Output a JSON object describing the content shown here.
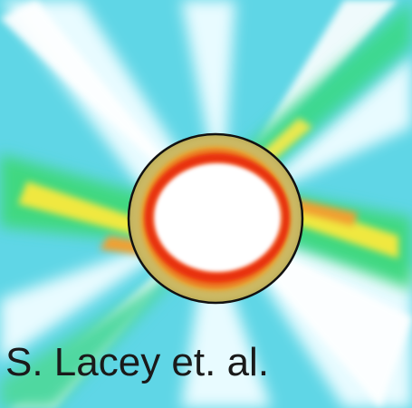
{
  "caption": "S. Lacey et. al."
}
